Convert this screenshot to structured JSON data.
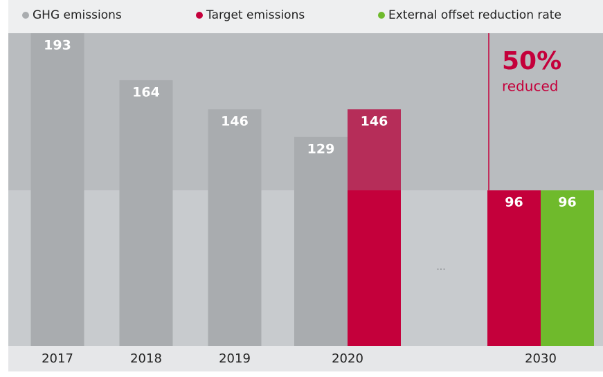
{
  "chart_data": {
    "type": "bar",
    "categories": [
      "2017",
      "2018",
      "2019",
      "2020",
      null,
      "2030"
    ],
    "series": [
      {
        "name": "GHG emissions",
        "color": "#a9acaf",
        "values": [
          193,
          164,
          146,
          129,
          null,
          null
        ]
      },
      {
        "name": "Target emissions",
        "color": "#c4003b",
        "values": [
          null,
          null,
          null,
          146,
          null,
          96
        ]
      },
      {
        "name": "External offset reduction rate",
        "color": "#6fba2c",
        "values": [
          null,
          null,
          null,
          null,
          null,
          96
        ]
      }
    ],
    "ylim": [
      0,
      193
    ],
    "gap_label": "...",
    "annotation": {
      "value": "50%",
      "text": "reduced"
    }
  }
}
